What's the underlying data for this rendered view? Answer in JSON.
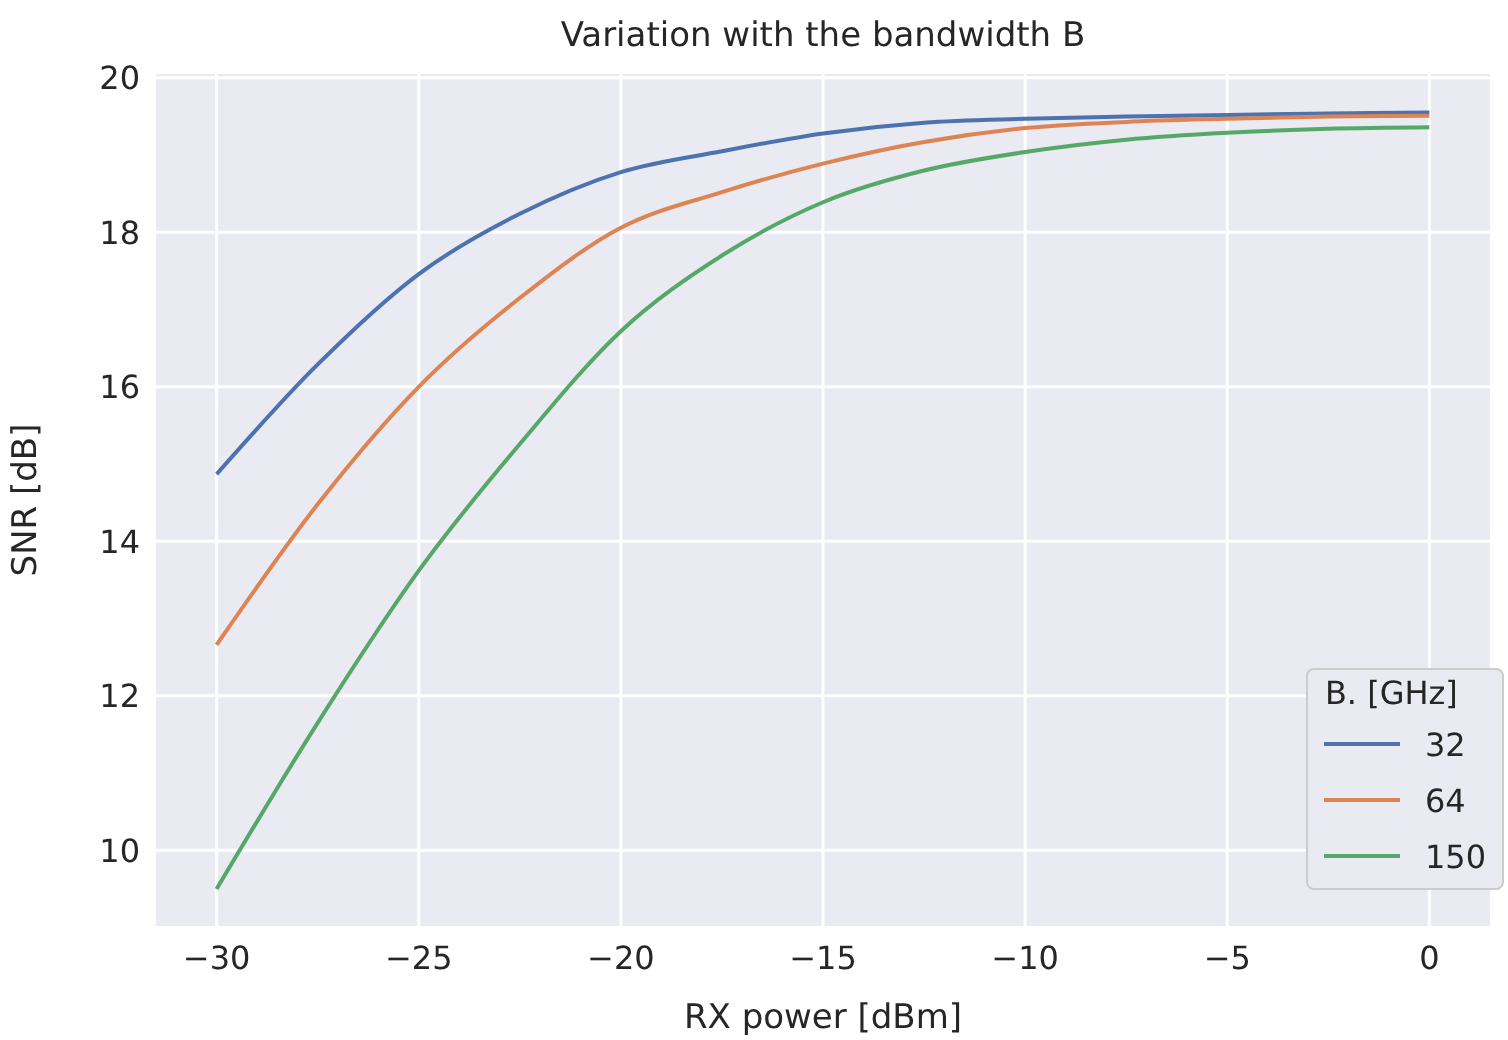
{
  "chart_data": {
    "type": "line",
    "title": "Variation with the bandwidth B",
    "xlabel": "RX power [dBm]",
    "ylabel": "SNR [dB]",
    "legend_title": "B. [GHz]",
    "x": [
      -30,
      -27.5,
      -25,
      -22.5,
      -20,
      -17.5,
      -15,
      -12.5,
      -10,
      -7.5,
      -5,
      -2.5,
      0
    ],
    "series": [
      {
        "name": "32",
        "color": "#4c72b0",
        "values": [
          14.87,
          16.29,
          17.46,
          18.24,
          18.78,
          19.05,
          19.28,
          19.42,
          19.47,
          19.5,
          19.52,
          19.54,
          19.55
        ]
      },
      {
        "name": "64",
        "color": "#dd8452",
        "values": [
          12.66,
          14.48,
          16.0,
          17.15,
          18.06,
          18.52,
          18.89,
          19.17,
          19.35,
          19.43,
          19.47,
          19.5,
          19.51
        ]
      },
      {
        "name": "150",
        "color": "#55a868",
        "values": [
          9.5,
          11.65,
          13.62,
          15.26,
          16.72,
          17.7,
          18.39,
          18.8,
          19.04,
          19.2,
          19.29,
          19.34,
          19.36
        ]
      }
    ],
    "xlim": [
      -31.5,
      1.5
    ],
    "xticks": [
      {
        "value": -30,
        "label": "−30"
      },
      {
        "value": -25,
        "label": "−25"
      },
      {
        "value": -20,
        "label": "−20"
      },
      {
        "value": -15,
        "label": "−15"
      },
      {
        "value": -10,
        "label": "−10"
      },
      {
        "value": -5,
        "label": "−5"
      },
      0
    ],
    "ylim": [
      9.02,
      20.05
    ],
    "yticks": [
      10,
      12,
      14,
      16,
      18,
      20
    ],
    "grid": true,
    "legend": "bottom right",
    "marker": "none",
    "line_style": "solid"
  }
}
